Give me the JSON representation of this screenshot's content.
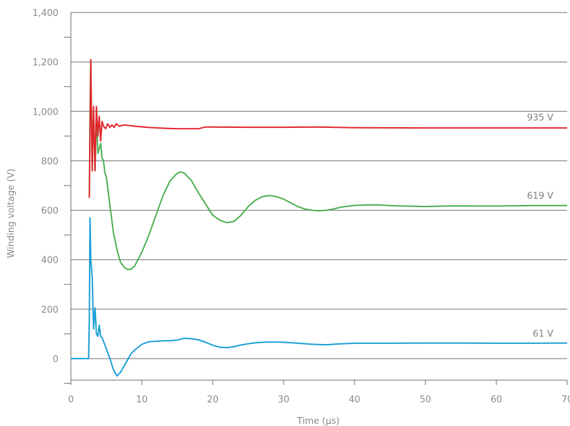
{
  "chart_data": {
    "type": "line",
    "xlabel": "Time (µs)",
    "ylabel": "Winding voltage (V)",
    "xlim": [
      0,
      70
    ],
    "ylim": [
      -80,
      1400
    ],
    "x_ticks": [
      0,
      10,
      20,
      30,
      40,
      50,
      60,
      70
    ],
    "x_tick_labels": [
      "0",
      "10",
      "20",
      "30",
      "40",
      "50",
      "60",
      "70"
    ],
    "y_ticks": [
      0,
      200,
      400,
      600,
      800,
      1000,
      1200,
      1400
    ],
    "y_tick_labels": [
      "0",
      "200",
      "400",
      "600",
      "800",
      "1,000",
      "1,200",
      "1,400"
    ],
    "grid": "horizontal",
    "legend": "none",
    "series": [
      {
        "name": "935 V",
        "color": "#e0262b",
        "x": [
          2.6,
          2.8,
          3.0,
          3.2,
          3.4,
          3.6,
          3.8,
          4.0,
          4.2,
          4.4,
          4.6,
          4.9,
          5.2,
          5.5,
          5.8,
          6.1,
          6.4,
          6.8,
          7.5,
          9,
          11,
          13,
          15,
          18,
          19,
          25,
          30,
          35,
          40,
          50,
          60,
          70
        ],
        "y": [
          650,
          1210,
          760,
          1020,
          760,
          1020,
          900,
          980,
          880,
          960,
          940,
          930,
          950,
          935,
          945,
          935,
          950,
          940,
          945,
          940,
          935,
          932,
          930,
          930,
          937,
          936,
          936,
          937,
          934,
          933,
          933,
          933
        ]
      },
      {
        "name": "619 V",
        "color": "#4caf50",
        "x": [
          2.6,
          2.7,
          2.8,
          3.0,
          3.2,
          3.4,
          3.6,
          3.8,
          4.0,
          4.2,
          4.4,
          4.6,
          4.8,
          5.0,
          5.5,
          6.0,
          6.5,
          7.0,
          7.5,
          8.0,
          8.5,
          9.0,
          10,
          11,
          12,
          13,
          14,
          15,
          15.5,
          16,
          17,
          18,
          19,
          20,
          21,
          22,
          23,
          24,
          25,
          26,
          27,
          28,
          29,
          30,
          31,
          32,
          33,
          34,
          35,
          36,
          37,
          38,
          40,
          43,
          46,
          50,
          54,
          60,
          65,
          70
        ],
        "y": [
          650,
          1000,
          1210,
          760,
          1010,
          760,
          1000,
          830,
          850,
          870,
          810,
          800,
          750,
          735,
          620,
          510,
          440,
          390,
          370,
          360,
          362,
          375,
          430,
          500,
          580,
          660,
          720,
          750,
          755,
          750,
          720,
          670,
          625,
          580,
          560,
          550,
          555,
          580,
          615,
          640,
          655,
          660,
          655,
          645,
          630,
          615,
          605,
          600,
          598,
          600,
          605,
          612,
          620,
          622,
          618,
          615,
          618,
          617,
          619,
          619
        ]
      },
      {
        "name": "61 V",
        "color": "#1a9fd4",
        "x": [
          0,
          2.3,
          2.5,
          2.6,
          2.7,
          2.8,
          3.0,
          3.2,
          3.4,
          3.6,
          3.8,
          4.0,
          4.2,
          4.4,
          4.6,
          5.0,
          5.5,
          6.0,
          6.5,
          7.0,
          7.5,
          8.0,
          8.5,
          9.0,
          10,
          11,
          12,
          13,
          14,
          15,
          16,
          17,
          18,
          19,
          20,
          21,
          22,
          23,
          24,
          25,
          26,
          27,
          28,
          29,
          30,
          32,
          34,
          36,
          38,
          40,
          45,
          50,
          55,
          60,
          65,
          70
        ],
        "y": [
          0,
          0,
          0,
          160,
          570,
          400,
          330,
          120,
          205,
          100,
          90,
          135,
          90,
          85,
          70,
          40,
          0,
          -45,
          -70,
          -55,
          -30,
          -5,
          20,
          35,
          58,
          68,
          70,
          72,
          72,
          75,
          82,
          80,
          76,
          66,
          54,
          46,
          44,
          48,
          55,
          60,
          64,
          66,
          67,
          67,
          66,
          62,
          58,
          56,
          60,
          62,
          62,
          63,
          63,
          62,
          62,
          63
        ]
      }
    ],
    "annotations": [
      "935 V",
      "619 V",
      "61 V"
    ]
  }
}
